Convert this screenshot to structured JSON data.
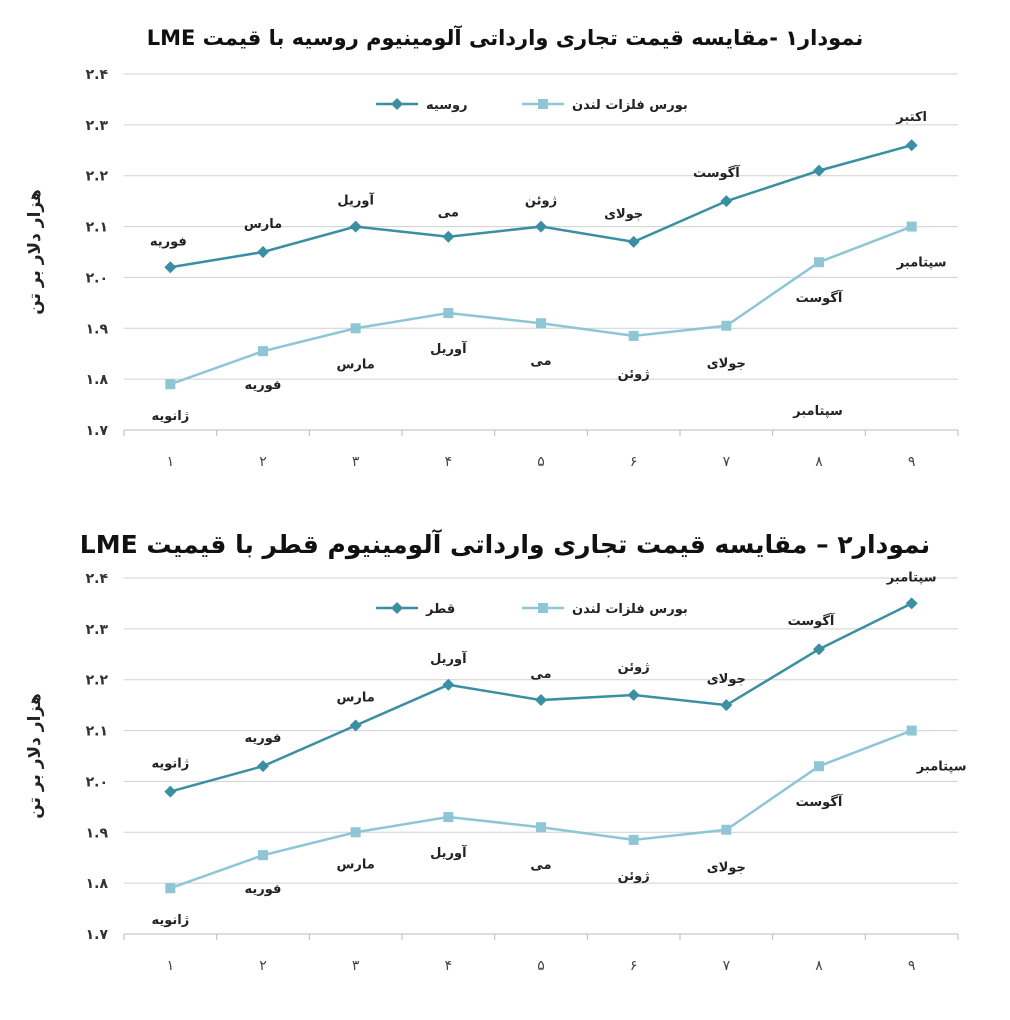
{
  "chart_data": [
    {
      "type": "line",
      "title": "نمودار۱ -مقایسه قیمت تجاری وارداتی آلومینیوم روسیه با قیمت LME",
      "ylabel": "هزار دلار بر تن",
      "xlabel": "",
      "x": [
        "۱",
        "۲",
        "۳",
        "۴",
        "۵",
        "۶",
        "۷",
        "۸",
        "۹"
      ],
      "ylim": [
        1.7,
        2.4
      ],
      "yticks": [
        "۱.۷",
        "۱.۸",
        "۱.۹",
        "۲.۰",
        "۲.۱",
        "۲.۲",
        "۲.۳",
        "۲.۴"
      ],
      "grid": true,
      "legend": "top",
      "series": [
        {
          "name": "روسیه",
          "color": "#3a8fa3",
          "marker": "diamond",
          "values": [
            2.02,
            2.05,
            2.1,
            2.08,
            2.1,
            2.07,
            2.15,
            2.21,
            2.26
          ],
          "labels": [
            "فوریه",
            "مارس",
            "آوریل",
            "می",
            "ژوئن",
            "جولای",
            "آگوست",
            "",
            "اکتبر"
          ]
        },
        {
          "name": "بورس فلزات لندن",
          "color": "#8ec6d6",
          "marker": "square",
          "values": [
            1.79,
            1.855,
            1.9,
            1.93,
            1.91,
            1.885,
            1.905,
            2.03,
            2.1
          ],
          "labels": [
            "ژانویه",
            "فوریه",
            "مارس",
            "آوریل",
            "می",
            "ژوئن",
            "جولای",
            "آگوست",
            "سپتامبر"
          ]
        }
      ],
      "annotations": [
        "سپتامبر"
      ]
    },
    {
      "type": "line",
      "title": "نمودار۲ – مقایسه قیمت تجاری وارداتی آلومینیوم قطر با قیمیت LME",
      "ylabel": "هزار دلار بر تن",
      "xlabel": "",
      "x": [
        "۱",
        "۲",
        "۳",
        "۴",
        "۵",
        "۶",
        "۷",
        "۸",
        "۹"
      ],
      "ylim": [
        1.7,
        2.4
      ],
      "yticks": [
        "۱.۷",
        "۱.۸",
        "۱.۹",
        "۲.۰",
        "۲.۱",
        "۲.۲",
        "۲.۳",
        "۲.۴"
      ],
      "grid": true,
      "legend": "top",
      "series": [
        {
          "name": "قطر",
          "color": "#3a8fa3",
          "marker": "diamond",
          "values": [
            1.98,
            2.03,
            2.11,
            2.19,
            2.16,
            2.17,
            2.15,
            2.26,
            2.35
          ],
          "labels": [
            "ژانویه",
            "فوریه",
            "مارس",
            "آوریل",
            "می",
            "ژوئن",
            "جولای",
            "آگوست",
            "سپتامبر"
          ]
        },
        {
          "name": "بورس فلزات لندن",
          "color": "#8ec6d6",
          "marker": "square",
          "values": [
            1.79,
            1.855,
            1.9,
            1.93,
            1.91,
            1.885,
            1.905,
            2.03,
            2.1
          ],
          "labels": [
            "ژانویه",
            "فوریه",
            "مارس",
            "آوریل",
            "می",
            "ژوئن",
            "جولای",
            "آگوست",
            "سپتامبر"
          ]
        }
      ],
      "annotations": []
    }
  ]
}
